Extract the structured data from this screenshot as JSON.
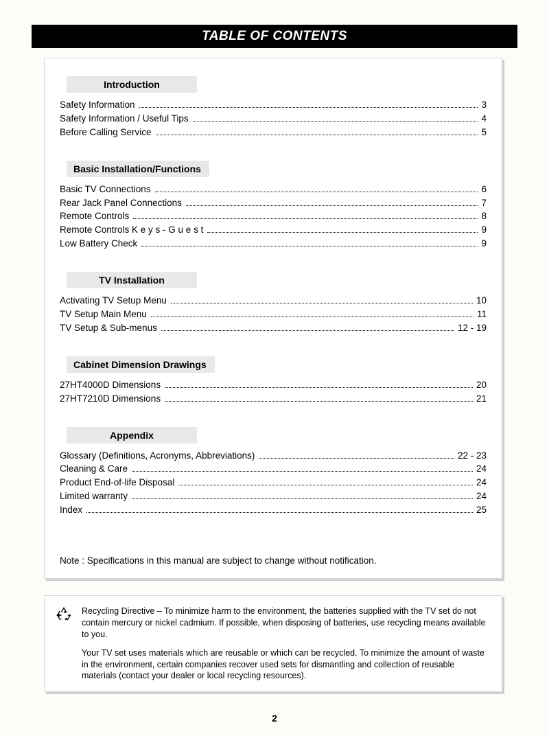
{
  "title": "TABLE OF CONTENTS",
  "page_number": "2",
  "sections": [
    {
      "name": "Introduction",
      "header_align": "center",
      "entries": [
        {
          "title": "Safety Information",
          "page": "3"
        },
        {
          "title": "Safety Information / Useful Tips",
          "page": "4"
        },
        {
          "title": "Before Calling Service",
          "page": "5"
        }
      ]
    },
    {
      "name": "Basic Installation/Functions",
      "header_align": "left",
      "entries": [
        {
          "title": "Basic TV Connections",
          "page": "6"
        },
        {
          "title": "Rear Jack Panel Connections",
          "page": "7"
        },
        {
          "title": "Remote Controls",
          "page": "8"
        },
        {
          "title": "Remote Controls  K e y s  -  G u e s t",
          "page": "9"
        },
        {
          "title": "Low Battery Check",
          "page": "9"
        }
      ]
    },
    {
      "name": "TV Installation",
      "header_align": "center",
      "entries": [
        {
          "title": "Activating TV Setup Menu",
          "page": "10"
        },
        {
          "title": "TV Setup Main Menu",
          "page": "11"
        },
        {
          "title": "TV Setup & Sub-menus",
          "page": "12 - 19"
        }
      ]
    },
    {
      "name": "Cabinet Dimension Drawings",
      "header_align": "left",
      "entries": [
        {
          "title": "27HT4000D Dimensions",
          "page": "20"
        },
        {
          "title": "27HT7210D Dimensions",
          "page": "21"
        }
      ]
    },
    {
      "name": "Appendix",
      "header_align": "center",
      "entries": [
        {
          "title": "Glossary (Definitions, Acronyms, Abbreviations)",
          "page": "22 - 23"
        },
        {
          "title": "Cleaning & Care",
          "page": "24"
        },
        {
          "title": "Product End-of-life Disposal",
          "page": "24"
        },
        {
          "title": "Limited warranty",
          "page": "24"
        },
        {
          "title": "Index",
          "page": "25"
        }
      ]
    }
  ],
  "note": "Note : Specifications in this manual are subject to change without notification.",
  "recycling": {
    "p1": "Recycling Directive – To minimize harm to the environment, the batteries supplied with the TV set do not contain mercury or nickel cadmium. If possible, when disposing of batteries, use recycling means available to you.",
    "p2": "Your TV set uses materials which are reusable or which can be recycled. To minimize the amount of waste in the environment, certain companies recover used sets for dismantling and collection of reusable materials (contact your dealer or local recycling resources)."
  },
  "styling": {
    "title_bg": "#000000",
    "title_fg": "#ffffff",
    "header_bg": "#e7e9e8",
    "page_bg": "#fdfcf9",
    "box_border": "#d8d8d8",
    "box_shadow": "#cfcfcf",
    "body_fontsize": 13.5,
    "header_fontsize": 14,
    "title_fontsize": 19,
    "recycle_fontsize": 12.5
  }
}
